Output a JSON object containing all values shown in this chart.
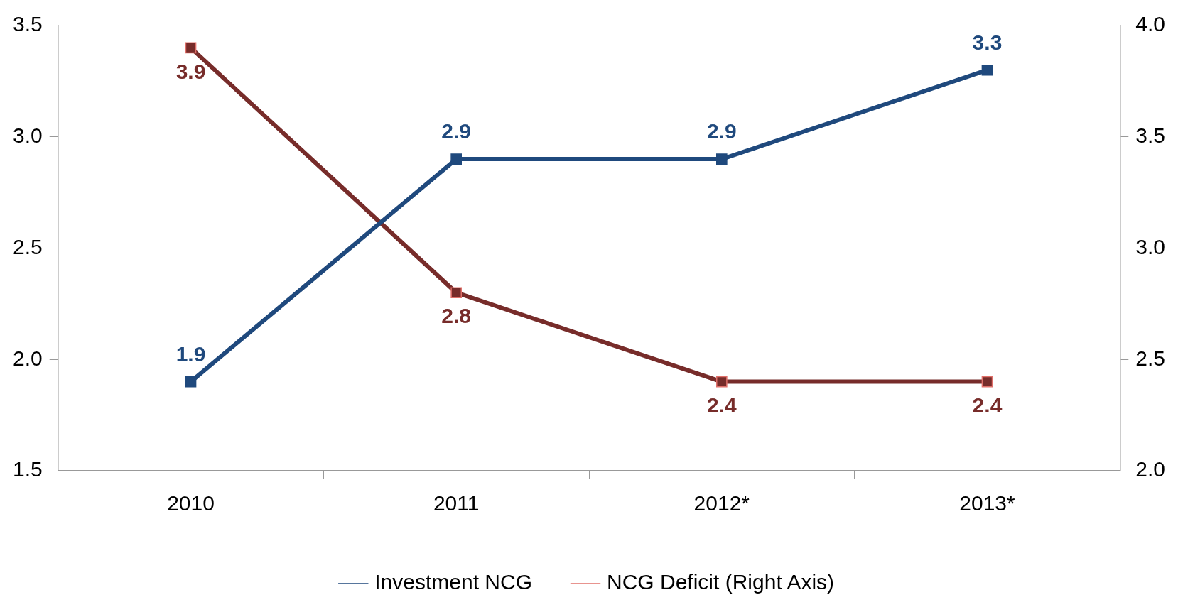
{
  "chart_data": {
    "type": "line",
    "categories": [
      "2010",
      "2011",
      "2012*",
      "2013*"
    ],
    "series": [
      {
        "name": "Investment NCG",
        "color": "#1f497d",
        "values": [
          1.9,
          2.9,
          2.9,
          3.3
        ]
      },
      {
        "name": "NCG Deficit (Right Axis)",
        "color": "#772c2a",
        "values": [
          3.9,
          2.8,
          2.4,
          2.4
        ],
        "axis": "y2"
      }
    ],
    "ylim": [
      1.5,
      3.5
    ],
    "yticks": [
      {
        "value": 1.5,
        "label": "1.5"
      },
      {
        "value": 2,
        "label": "2.0"
      },
      {
        "value": 2.5,
        "label": "2.5"
      },
      {
        "value": 3,
        "label": "3.0"
      },
      {
        "value": 3.5,
        "label": "3.5"
      }
    ],
    "y2lim": [
      2,
      4
    ],
    "y2ticks": [
      {
        "value": 2,
        "label": "2.0"
      },
      {
        "value": 2.5,
        "label": "2.5"
      },
      {
        "value": 3,
        "label": "3.0"
      },
      {
        "value": 3.5,
        "label": "3.5"
      },
      {
        "value": 4,
        "label": "4.0"
      }
    ],
    "data_labels": true,
    "legend": "bottom",
    "grid": false,
    "marker": "square",
    "line_style": "solid"
  }
}
